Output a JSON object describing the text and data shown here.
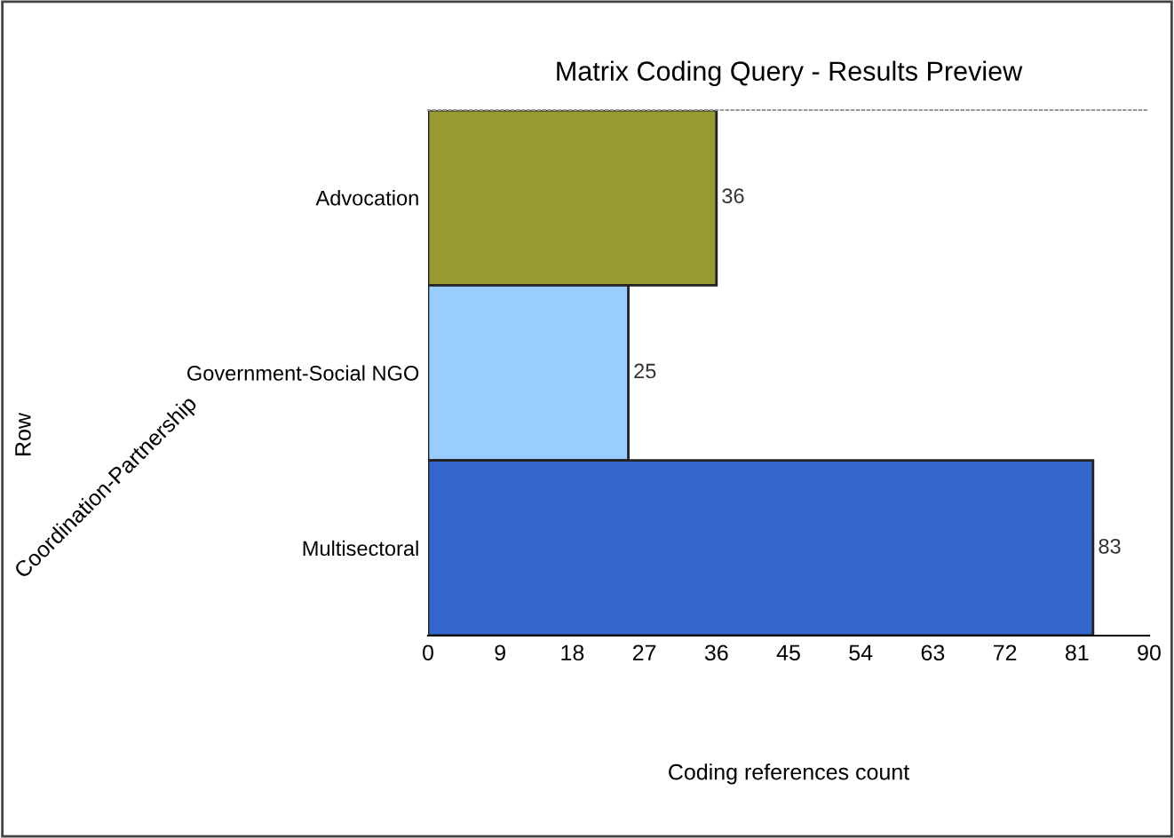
{
  "chart_data": {
    "type": "bar",
    "orientation": "horizontal",
    "title": "Matrix Coding Query - Results Preview",
    "xlabel": "Coding references count",
    "annotations": [
      "Row",
      "Coordination-Partnership"
    ],
    "categories": [
      "Advocation",
      "Government-Social NGO",
      "Multisectoral"
    ],
    "values": [
      36,
      25,
      83
    ],
    "colors": [
      "#999933",
      "#99ccff",
      "#3366cc"
    ],
    "data_labels": true,
    "xlim": [
      0,
      90
    ],
    "xticks": [
      0,
      9,
      18,
      27,
      36,
      45,
      54,
      63,
      72,
      81,
      90
    ],
    "grid": false,
    "legend": false
  }
}
